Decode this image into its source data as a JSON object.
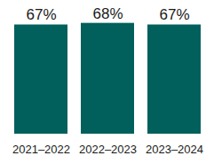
{
  "chart_data": {
    "type": "bar",
    "categories": [
      "2021–2022",
      "2022–2023",
      "2023–2024"
    ],
    "values": [
      67,
      68,
      67
    ],
    "value_labels": [
      "67%",
      "68%",
      "67%"
    ],
    "color": "#02605c",
    "ylim": [
      0,
      70
    ],
    "data_labels": true,
    "tick_labels": "x",
    "grid": false
  }
}
